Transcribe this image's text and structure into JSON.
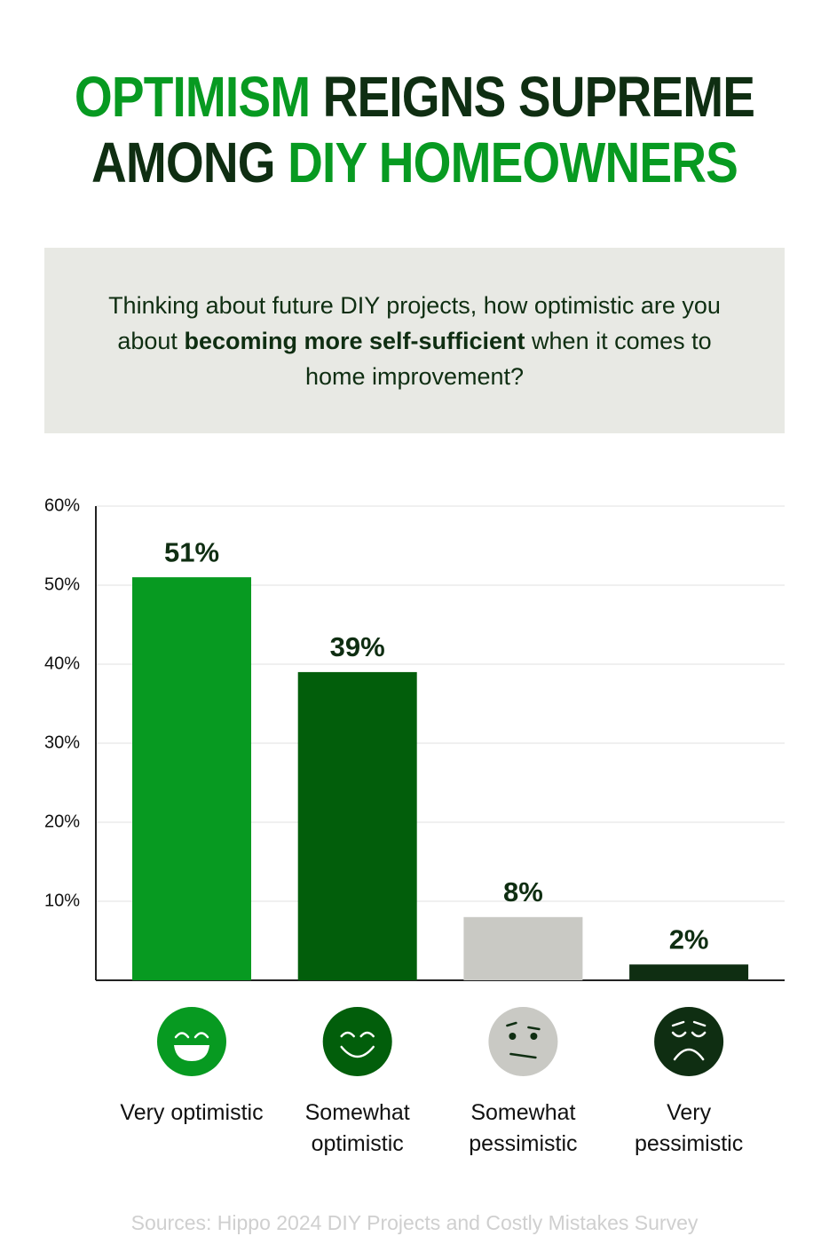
{
  "chart_data": {
    "type": "bar",
    "title_lines": [
      [
        {
          "text": "OPTIMISM",
          "color": "#079a21"
        },
        {
          "text": "REIGNS SUPREME",
          "color": "#0f2e12"
        }
      ],
      [
        {
          "text": "AMONG",
          "color": "#0f2e12"
        },
        {
          "text": "DIY HOMEOWNERS",
          "color": "#079a21"
        }
      ]
    ],
    "subtitle_parts": [
      {
        "text": "Thinking about future DIY projects, how optimistic are you about",
        "bold": false
      },
      {
        "text": "becoming more self-sufficient",
        "bold": true
      },
      {
        "text": "when it comes to home improvement?",
        "bold": false
      }
    ],
    "categories": [
      "Very optimistic",
      "Somewhat optimistic",
      "Somewhat pessimistic",
      "Very pessimistic"
    ],
    "values": [
      51,
      39,
      8,
      2
    ],
    "value_labels": [
      "51%",
      "39%",
      "8%",
      "2%"
    ],
    "colors": [
      "#079a21",
      "#025e0b",
      "#c9c9c4",
      "#0f2e12"
    ],
    "ylim": [
      0,
      60
    ],
    "yticks": [
      {
        "value": 10,
        "label": "10%"
      },
      {
        "value": 20,
        "label": "20%"
      },
      {
        "value": 30,
        "label": "30%"
      },
      {
        "value": 40,
        "label": "40%"
      },
      {
        "value": 50,
        "label": "50%"
      },
      {
        "value": 60,
        "label": "60%"
      }
    ],
    "grid": true,
    "source": "Sources: Hippo 2024 DIY Projects and Costly Mistakes Survey"
  }
}
